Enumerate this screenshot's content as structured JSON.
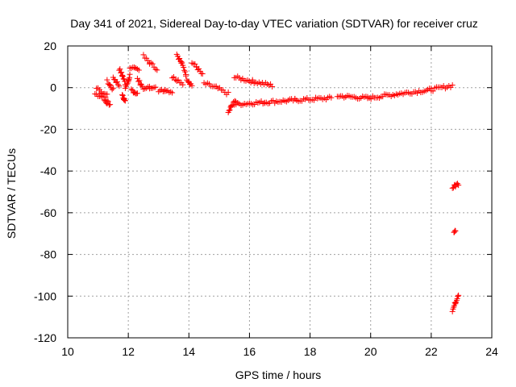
{
  "chart_data": {
    "type": "scatter",
    "title": "Day 341 of 2021, Sidereal Day-to-day VTEC variation (SDTVAR) for receiver cruz",
    "xlabel": "GPS time / hours",
    "ylabel": "SDTVAR / TECUs",
    "xlim": [
      10,
      24
    ],
    "ylim": [
      -120,
      20
    ],
    "x_ticks": [
      10,
      12,
      14,
      16,
      18,
      20,
      22,
      24
    ],
    "y_ticks": [
      -120,
      -100,
      -80,
      -60,
      -40,
      -20,
      0,
      20
    ],
    "grid": true,
    "marker": "+",
    "color": "#ff0000",
    "series": [
      {
        "name": "SDTVAR",
        "segments": [
          {
            "x": [
              10.9,
              11.1,
              11.3
            ],
            "y": [
              -3,
              -4,
              -3
            ]
          },
          {
            "x": [
              10.95,
              11.1,
              11.25
            ],
            "y": [
              0,
              -2,
              -4
            ]
          },
          {
            "x": [
              11.2,
              11.3,
              11.4
            ],
            "y": [
              -6,
              -7,
              -8
            ]
          },
          {
            "x": [
              11.3,
              11.4,
              11.5
            ],
            "y": [
              3,
              1,
              -1
            ]
          },
          {
            "x": [
              11.5,
              11.6,
              11.7
            ],
            "y": [
              5,
              3,
              1
            ]
          },
          {
            "x": [
              11.7,
              11.8,
              11.9
            ],
            "y": [
              9,
              6,
              2
            ]
          },
          {
            "x": [
              11.8,
              11.85,
              11.9
            ],
            "y": [
              -3,
              -5,
              -7
            ]
          },
          {
            "x": [
              11.9,
              12.0,
              12.05
            ],
            "y": [
              0,
              3,
              6
            ]
          },
          {
            "x": [
              12.05,
              12.2,
              12.35
            ],
            "y": [
              10,
              9,
              8
            ]
          },
          {
            "x": [
              12.1,
              12.2,
              12.3
            ],
            "y": [
              -1,
              -2,
              -3
            ]
          },
          {
            "x": [
              12.3,
              12.4,
              12.5
            ],
            "y": [
              4,
              2,
              0
            ]
          },
          {
            "x": [
              12.5,
              12.7,
              12.95
            ],
            "y": [
              15,
              12,
              9
            ]
          },
          {
            "x": [
              12.5,
              12.7,
              12.9
            ],
            "y": [
              -1,
              0,
              1
            ]
          },
          {
            "x": [
              13.0,
              13.2,
              13.45
            ],
            "y": [
              -2,
              -1,
              -2
            ]
          },
          {
            "x": [
              13.45,
              13.6,
              13.8
            ],
            "y": [
              5,
              4,
              2
            ]
          },
          {
            "x": [
              13.6,
              13.75,
              13.9
            ],
            "y": [
              16,
              12,
              7
            ]
          },
          {
            "x": [
              13.9,
              14.0,
              14.1
            ],
            "y": [
              5,
              3,
              1
            ]
          },
          {
            "x": [
              14.1,
              14.25,
              14.45
            ],
            "y": [
              12,
              10,
              6
            ]
          },
          {
            "x": [
              14.5,
              14.9,
              15.3
            ],
            "y": [
              2,
              0,
              -3
            ]
          },
          {
            "x": [
              15.3,
              15.4,
              15.55
            ],
            "y": [
              -12,
              -9,
              -6
            ]
          },
          {
            "x": [
              15.5,
              16.1,
              16.75
            ],
            "y": [
              5,
              3,
              1
            ]
          },
          {
            "x": [
              15.5,
              16.5,
              17.5,
              18.7
            ],
            "y": [
              -8,
              -7,
              -6,
              -5
            ]
          },
          {
            "x": [
              18.9,
              19.9,
              20.9,
              22.0,
              22.7
            ],
            "y": [
              -4,
              -5,
              -3,
              -1,
              1
            ]
          },
          {
            "x": [
              22.7,
              22.8,
              22.9
            ],
            "y": [
              -48,
              -47,
              -46
            ]
          },
          {
            "x": [
              22.75,
              22.8
            ],
            "y": [
              -69,
              -68
            ]
          },
          {
            "x": [
              22.7,
              22.8,
              22.9
            ],
            "y": [
              -107,
              -103,
              -99
            ]
          }
        ]
      }
    ]
  }
}
